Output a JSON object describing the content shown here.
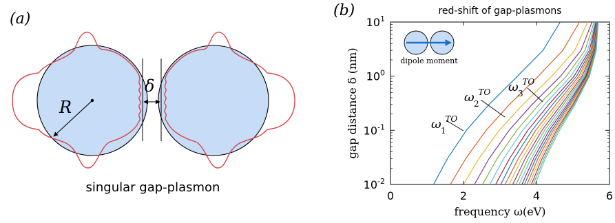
{
  "panel_a": {
    "label": "(a)",
    "radius_label": "R",
    "gap_label": "δ",
    "caption": "singular gap-plasmon"
  },
  "panel_b": {
    "label": "(b)",
    "inset_label": "dipole moment",
    "mode_labels": [
      {
        "base": "ω",
        "sup": "TO",
        "sub": "1"
      },
      {
        "base": "ω",
        "sup": "TO",
        "sub": "2"
      },
      {
        "base": "ω",
        "sup": "TO",
        "sub": "3"
      }
    ]
  },
  "colors": {
    "particle_fill": "#c6dcf7",
    "field_line": "#d8454b",
    "dipole_arrow": "#1b6fc8"
  },
  "chart_data": {
    "type": "line",
    "title": "red-shift of gap-plasmons",
    "xlabel": "frequency ω(eV)",
    "ylabel": "gap distance δ (nm)",
    "xlim": [
      0,
      6
    ],
    "ylim": [
      0.01,
      10
    ],
    "yscale": "log",
    "xticks": [
      "0",
      "2",
      "4",
      "6"
    ],
    "yticks": [
      "10^-2",
      "10^-1",
      "10^0",
      "10^1"
    ],
    "y_samples": [
      0.01,
      0.03,
      0.1,
      0.3,
      1,
      3,
      10
    ],
    "series": [
      {
        "x": [
          1.18,
          1.56,
          2.08,
          2.7,
          3.48,
          4.18,
          4.65
        ]
      },
      {
        "x": [
          1.64,
          2.06,
          2.62,
          3.26,
          4.05,
          4.72,
          5.18
        ]
      },
      {
        "x": [
          2.0,
          2.42,
          2.98,
          3.63,
          4.42,
          5.05,
          5.4
        ]
      },
      {
        "x": [
          2.3,
          2.7,
          3.25,
          3.88,
          4.66,
          5.22,
          5.52
        ]
      },
      {
        "x": [
          2.52,
          2.92,
          3.46,
          4.07,
          4.82,
          5.33,
          5.58
        ]
      },
      {
        "x": [
          2.72,
          3.1,
          3.62,
          4.22,
          4.94,
          5.4,
          5.61
        ]
      },
      {
        "x": [
          2.88,
          3.26,
          3.76,
          4.34,
          5.03,
          5.45,
          5.63
        ]
      },
      {
        "x": [
          3.02,
          3.38,
          3.88,
          4.44,
          5.1,
          5.49,
          5.64
        ]
      },
      {
        "x": [
          3.14,
          3.5,
          3.98,
          4.53,
          5.16,
          5.52,
          5.65
        ]
      },
      {
        "x": [
          3.25,
          3.6,
          4.07,
          4.61,
          5.21,
          5.54,
          5.66
        ]
      },
      {
        "x": [
          3.35,
          3.69,
          4.15,
          4.68,
          5.25,
          5.56,
          5.66
        ]
      },
      {
        "x": [
          3.44,
          3.77,
          4.22,
          4.74,
          5.29,
          5.58,
          5.67
        ]
      },
      {
        "x": [
          3.52,
          3.85,
          4.29,
          4.8,
          5.32,
          5.59,
          5.67
        ]
      },
      {
        "x": [
          3.6,
          3.92,
          4.35,
          4.85,
          5.35,
          5.6,
          5.68
        ]
      },
      {
        "x": [
          3.67,
          3.98,
          4.41,
          4.89,
          5.37,
          5.61,
          5.68
        ]
      },
      {
        "x": [
          3.74,
          4.04,
          4.46,
          4.93,
          5.39,
          5.62,
          5.68
        ]
      },
      {
        "x": [
          3.8,
          4.1,
          4.51,
          4.97,
          5.41,
          5.62,
          5.69
        ]
      },
      {
        "x": [
          3.86,
          4.15,
          4.55,
          5.0,
          5.43,
          5.63,
          5.69
        ]
      },
      {
        "x": [
          3.91,
          4.2,
          4.59,
          5.03,
          5.44,
          5.63,
          5.69
        ]
      },
      {
        "x": [
          3.96,
          4.24,
          4.63,
          5.06,
          5.45,
          5.64,
          5.69
        ]
      }
    ]
  }
}
